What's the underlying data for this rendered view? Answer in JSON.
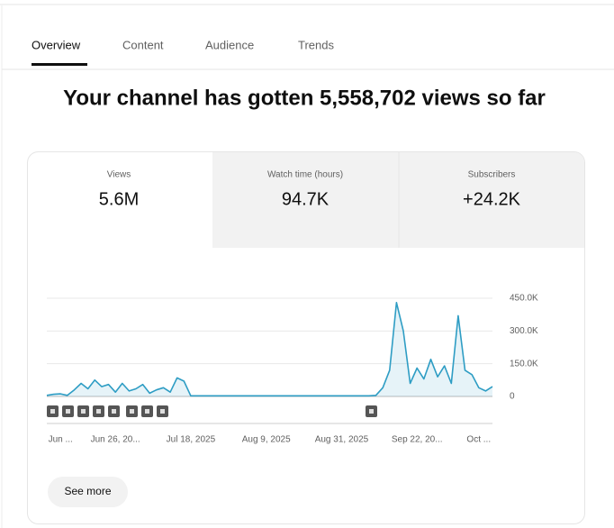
{
  "tabs": [
    "Overview",
    "Content",
    "Audience",
    "Trends"
  ],
  "headline": "Your channel has gotten 5,558,702 views so far",
  "metrics": [
    {
      "label": "Views",
      "value": "5.6M"
    },
    {
      "label": "Watch time (hours)",
      "value": "94.7K"
    },
    {
      "label": "Subscribers",
      "value": "+24.2K"
    }
  ],
  "button": "See more",
  "chart_data": {
    "type": "line",
    "color": "#2e9dc4",
    "categories": [
      null,
      null,
      "Jun ...",
      null,
      null,
      null,
      null,
      null,
      null,
      null,
      "Jun 26, 20...",
      null,
      null,
      null,
      null,
      null,
      null,
      null,
      null,
      null,
      null,
      "Jul 18, 2025",
      null,
      null,
      null,
      null,
      null,
      null,
      null,
      null,
      null,
      null,
      "Aug 9, 2025",
      null,
      null,
      null,
      null,
      null,
      null,
      null,
      null,
      null,
      null,
      "Aug 31, 2025",
      null,
      null,
      null,
      null,
      null,
      null,
      null,
      null,
      null,
      null,
      "Sep 22, 20...",
      null,
      null,
      null,
      null,
      null,
      null,
      null,
      null,
      "Oct ...",
      null,
      null
    ],
    "values": [
      5000,
      10000,
      12000,
      5000,
      30000,
      60000,
      35000,
      75000,
      45000,
      55000,
      20000,
      60000,
      25000,
      35000,
      55000,
      15000,
      30000,
      40000,
      20000,
      85000,
      70000,
      3000,
      3000,
      3000,
      3000,
      3000,
      3000,
      3000,
      3000,
      3000,
      3000,
      3000,
      3000,
      3000,
      3000,
      3000,
      3000,
      3000,
      3000,
      3000,
      3000,
      3000,
      3000,
      3000,
      3000,
      3000,
      3000,
      3000,
      5000,
      40000,
      120000,
      430000,
      300000,
      60000,
      130000,
      80000,
      170000,
      90000,
      140000,
      60000,
      370000,
      120000,
      100000,
      40000,
      25000,
      45000
    ],
    "ylim": [
      0,
      450000
    ],
    "yticks": [
      0,
      {
        "value": 150000,
        "label": "150.0K"
      },
      {
        "value": 300000,
        "label": "300.0K"
      },
      {
        "value": 450000,
        "label": "450.0K"
      }
    ],
    "grid": true
  }
}
